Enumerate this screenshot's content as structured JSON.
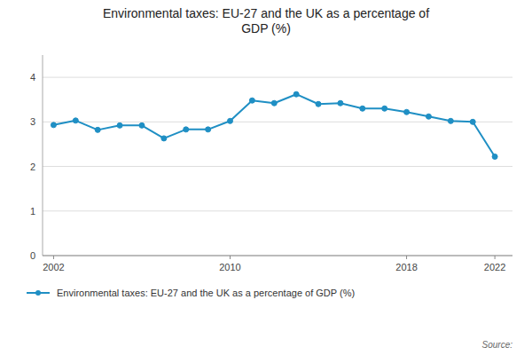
{
  "chart_data": {
    "type": "line",
    "title": "Environmental taxes: EU-27 and the UK as a percentage of\nGDP (%)",
    "x": [
      2002,
      2003,
      2004,
      2005,
      2006,
      2007,
      2008,
      2009,
      2010,
      2011,
      2012,
      2013,
      2014,
      2015,
      2016,
      2017,
      2018,
      2019,
      2020,
      2021,
      2022
    ],
    "series": [
      {
        "name": "Environmental taxes: EU-27 and the UK as a percentage of GDP (%)",
        "color": "#1f8fc4",
        "marker": "circle",
        "values": [
          2.93,
          3.03,
          2.82,
          2.92,
          2.92,
          2.63,
          2.83,
          2.83,
          3.02,
          3.48,
          3.42,
          3.62,
          3.4,
          3.42,
          3.3,
          3.3,
          3.22,
          3.12,
          3.02,
          3.0,
          2.22
        ]
      }
    ],
    "xlim": [
      2001.5,
      2022.8
    ],
    "xticks": [
      2002,
      2010,
      2018,
      2022
    ],
    "ylim": [
      0,
      4.5
    ],
    "yticks": [
      0,
      1,
      2,
      3,
      4
    ],
    "grid": true,
    "legend": "bottom",
    "annotations": [
      "Source:"
    ]
  }
}
